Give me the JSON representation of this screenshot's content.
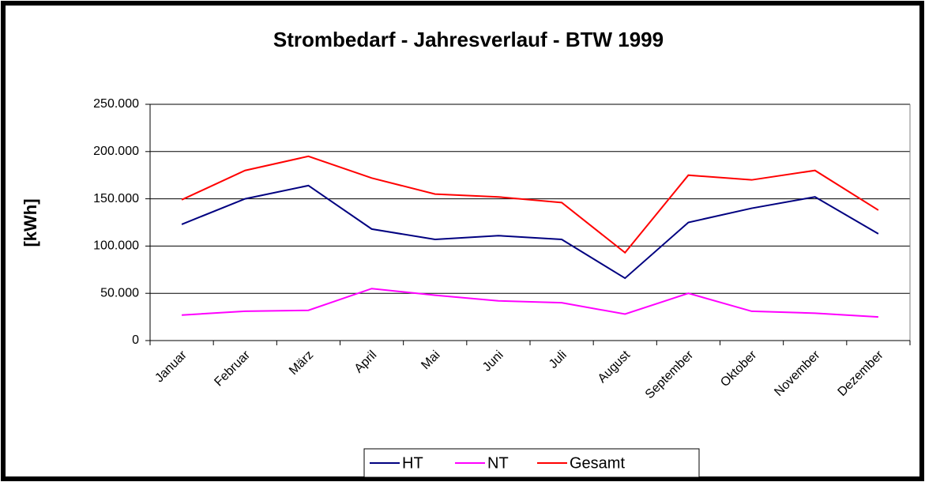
{
  "chart_data": {
    "type": "line",
    "title": "Strombedarf - Jahresverlauf - BTW 1999",
    "y_label": "[kWh]",
    "categories": [
      "Januar",
      "Februar",
      "März",
      "April",
      "Mai",
      "Juni",
      "Juli",
      "August",
      "September",
      "Oktober",
      "November",
      "Dezember"
    ],
    "series": [
      {
        "name": "HT",
        "color": "#000080",
        "values": [
          123000,
          150000,
          164000,
          118000,
          107000,
          111000,
          107000,
          66000,
          125000,
          140000,
          152000,
          113000
        ]
      },
      {
        "name": "NT",
        "color": "#ff00ff",
        "values": [
          27000,
          31000,
          32000,
          55000,
          48000,
          42000,
          40000,
          28000,
          50000,
          31000,
          29000,
          25000
        ]
      },
      {
        "name": "Gesamt",
        "color": "#ff0000",
        "values": [
          149000,
          180000,
          195000,
          172000,
          155000,
          152000,
          146000,
          93000,
          175000,
          170000,
          180000,
          138000
        ]
      }
    ],
    "ylim": [
      0,
      250000
    ],
    "yticks": [
      0,
      {
        "value": 50000,
        "label": "50.000"
      },
      {
        "value": 100000,
        "label": "100.000"
      },
      {
        "value": 150000,
        "label": "150.000"
      },
      {
        "value": 200000,
        "label": "200.000"
      },
      {
        "value": 250000,
        "label": "250.000"
      }
    ],
    "grid": true,
    "legend": "bottom"
  }
}
